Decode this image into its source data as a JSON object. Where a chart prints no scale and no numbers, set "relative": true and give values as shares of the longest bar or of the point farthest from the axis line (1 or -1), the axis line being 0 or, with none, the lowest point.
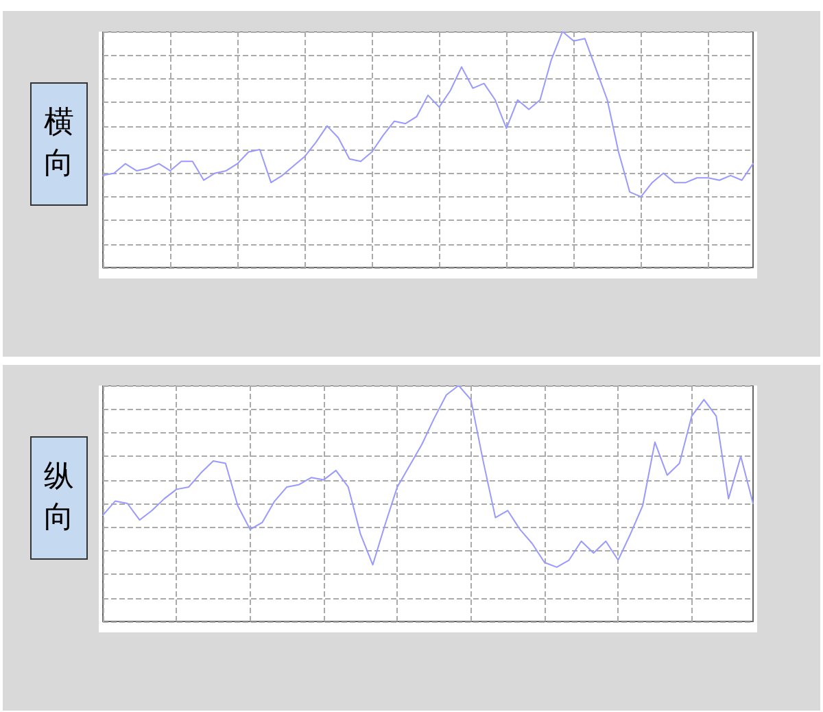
{
  "chart_data": [
    {
      "type": "line",
      "title": "横向",
      "relative": true,
      "grid": true,
      "line_style": "solid",
      "categories": [
        null,
        null,
        null,
        null,
        null,
        null,
        null,
        null,
        null,
        null,
        null,
        null,
        null,
        null,
        null,
        null,
        null,
        null,
        null,
        null,
        null,
        null,
        null,
        null,
        null,
        null,
        null,
        null,
        null,
        null,
        null,
        null,
        null,
        null,
        null,
        null,
        null,
        null,
        null,
        null,
        null,
        null,
        null,
        null,
        null,
        null,
        null,
        null,
        null,
        null,
        null,
        null,
        null,
        null,
        null,
        null,
        null,
        null,
        null
      ],
      "series": [
        {
          "color": "#9999ff",
          "values": [
            0.39,
            0.4,
            0.44,
            0.41,
            0.42,
            0.44,
            0.41,
            0.45,
            0.45,
            0.37,
            0.4,
            0.41,
            0.44,
            0.49,
            0.5,
            0.36,
            0.39,
            0.43,
            0.47,
            0.53,
            0.6,
            0.55,
            0.46,
            0.45,
            0.49,
            0.56,
            0.62,
            0.61,
            0.64,
            0.73,
            0.68,
            0.75,
            0.85,
            0.76,
            0.78,
            0.71,
            0.59,
            0.71,
            0.67,
            0.71,
            0.88,
            1,
            0.96,
            0.97,
            0.84,
            0.71,
            0.49,
            0.32,
            0.3,
            0.36,
            0.4,
            0.36,
            0.36,
            0.38,
            0.38,
            0.37,
            0.39,
            0.37,
            0.44
          ]
        }
      ]
    },
    {
      "type": "line",
      "title": "纵向",
      "relative": true,
      "grid": true,
      "line_style": "solid",
      "categories": [
        null,
        null,
        null,
        null,
        null,
        null,
        null,
        null,
        null,
        null,
        null,
        null,
        null,
        null,
        null,
        null,
        null,
        null,
        null,
        null,
        null,
        null,
        null,
        null,
        null,
        null,
        null,
        null,
        null,
        null,
        null,
        null,
        null,
        null,
        null,
        null,
        null,
        null,
        null,
        null,
        null,
        null,
        null,
        null,
        null,
        null,
        null,
        null,
        null,
        null,
        null,
        null,
        null,
        null
      ],
      "series": [
        {
          "color": "#9999ff",
          "values": [
            0.45,
            0.51,
            0.5,
            0.43,
            0.47,
            0.52,
            0.56,
            0.57,
            0.63,
            0.68,
            0.67,
            0.49,
            0.39,
            0.42,
            0.51,
            0.57,
            0.58,
            0.61,
            0.6,
            0.64,
            0.57,
            0.37,
            0.24,
            0.41,
            0.57,
            0.66,
            0.75,
            0.86,
            0.96,
            1,
            0.94,
            0.68,
            0.44,
            0.47,
            0.39,
            0.33,
            0.25,
            0.23,
            0.26,
            0.34,
            0.29,
            0.34,
            0.26,
            0.37,
            0.49,
            0.76,
            0.62,
            0.67,
            0.87,
            0.94,
            0.87,
            0.52,
            0.7,
            0.5
          ]
        }
      ]
    }
  ]
}
